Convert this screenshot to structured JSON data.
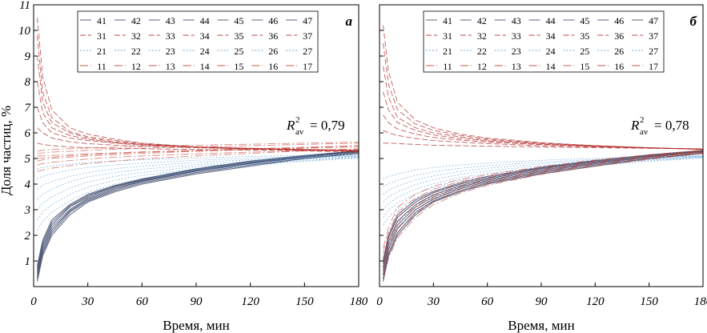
{
  "figure": {
    "ylabel": "Доля частиц, %",
    "xlabel": "Время, мин"
  },
  "chart_data": [
    {
      "panel_label": "а",
      "type": "line",
      "xlabel": "Время, мин",
      "ylabel": "Доля частиц, %",
      "xlim": [
        0,
        180
      ],
      "ylim": [
        0,
        11
      ],
      "xticks": [
        0,
        30,
        60,
        90,
        120,
        150,
        180
      ],
      "yticks": [
        1,
        2,
        3,
        4,
        5,
        6,
        7,
        8,
        9,
        10,
        11
      ],
      "grid": false,
      "legend_position": "top",
      "legend_labels": [
        [
          "41",
          "42",
          "43",
          "44",
          "45",
          "46",
          "47"
        ],
        [
          "31",
          "32",
          "33",
          "34",
          "35",
          "36",
          "37"
        ],
        [
          "21",
          "22",
          "23",
          "24",
          "25",
          "26",
          "27"
        ],
        [
          "11",
          "12",
          "13",
          "14",
          "15",
          "16",
          "17"
        ]
      ],
      "legend_colors": {
        "4": "#7a86a8",
        "3": "#d7b0b4",
        "2": "#a9c4d6",
        "1": "#c8a59e"
      },
      "annotation": {
        "symbol": "R",
        "superscript": "2",
        "subscript": "av",
        "text": "= 0,79"
      },
      "x": [
        2,
        5,
        10,
        20,
        30,
        45,
        60,
        90,
        120,
        150,
        180
      ],
      "series": [
        {
          "name": "41",
          "group": "4",
          "values": [
            0.2,
            1.2,
            2.0,
            2.8,
            3.3,
            3.7,
            4.0,
            4.4,
            4.7,
            5.0,
            5.2
          ]
        },
        {
          "name": "42",
          "group": "4",
          "values": [
            0.3,
            1.3,
            2.1,
            2.9,
            3.35,
            3.75,
            4.05,
            4.45,
            4.75,
            5.0,
            5.2
          ]
        },
        {
          "name": "43",
          "group": "4",
          "values": [
            0.4,
            1.4,
            2.2,
            2.95,
            3.4,
            3.8,
            4.1,
            4.5,
            4.8,
            5.05,
            5.25
          ]
        },
        {
          "name": "44",
          "group": "4",
          "values": [
            0.5,
            1.5,
            2.3,
            3.0,
            3.45,
            3.85,
            4.12,
            4.52,
            4.82,
            5.05,
            5.25
          ]
        },
        {
          "name": "45",
          "group": "4",
          "values": [
            0.6,
            1.6,
            2.4,
            3.1,
            3.5,
            3.9,
            4.15,
            4.55,
            4.85,
            5.08,
            5.28
          ]
        },
        {
          "name": "46",
          "group": "4",
          "values": [
            0.7,
            1.7,
            2.5,
            3.15,
            3.55,
            3.92,
            4.18,
            4.58,
            4.87,
            5.1,
            5.3
          ]
        },
        {
          "name": "47",
          "group": "4",
          "values": [
            0.8,
            1.8,
            2.6,
            3.2,
            3.6,
            3.95,
            4.2,
            4.6,
            4.9,
            5.12,
            5.3
          ]
        },
        {
          "name": "31",
          "group": "3",
          "values": [
            10.5,
            8.2,
            6.9,
            6.2,
            5.95,
            5.75,
            5.6,
            5.45,
            5.35,
            5.3,
            5.25
          ]
        },
        {
          "name": "32",
          "group": "3",
          "values": [
            9.8,
            7.6,
            6.6,
            6.05,
            5.85,
            5.7,
            5.58,
            5.45,
            5.38,
            5.33,
            5.28
          ]
        },
        {
          "name": "33",
          "group": "3",
          "values": [
            9.0,
            7.2,
            6.4,
            6.0,
            5.8,
            5.65,
            5.55,
            5.45,
            5.38,
            5.33,
            5.3
          ]
        },
        {
          "name": "34",
          "group": "3",
          "values": [
            8.0,
            6.8,
            6.2,
            5.9,
            5.75,
            5.62,
            5.55,
            5.45,
            5.4,
            5.35,
            5.3
          ]
        },
        {
          "name": "35",
          "group": "3",
          "values": [
            7.0,
            6.4,
            6.0,
            5.8,
            5.7,
            5.6,
            5.52,
            5.45,
            5.4,
            5.35,
            5.32
          ]
        },
        {
          "name": "36",
          "group": "3",
          "values": [
            6.2,
            6.0,
            5.8,
            5.65,
            5.58,
            5.52,
            5.48,
            5.42,
            5.38,
            5.35,
            5.32
          ]
        },
        {
          "name": "37",
          "group": "3",
          "values": [
            5.6,
            5.55,
            5.5,
            5.45,
            5.42,
            5.4,
            5.38,
            5.35,
            5.33,
            5.32,
            5.3
          ]
        },
        {
          "name": "21",
          "group": "2",
          "values": [
            4.6,
            4.65,
            4.7,
            4.78,
            4.84,
            4.9,
            4.95,
            5.02,
            5.08,
            5.12,
            5.15
          ]
        },
        {
          "name": "22",
          "group": "2",
          "values": [
            4.2,
            4.3,
            4.4,
            4.55,
            4.65,
            4.75,
            4.82,
            4.93,
            5.01,
            5.07,
            5.12
          ]
        },
        {
          "name": "23",
          "group": "2",
          "values": [
            3.8,
            3.95,
            4.1,
            4.3,
            4.45,
            4.6,
            4.7,
            4.85,
            4.95,
            5.03,
            5.1
          ]
        },
        {
          "name": "24",
          "group": "2",
          "values": [
            3.4,
            3.6,
            3.8,
            4.1,
            4.28,
            4.45,
            4.58,
            4.76,
            4.89,
            5.0,
            5.08
          ]
        },
        {
          "name": "25",
          "group": "2",
          "values": [
            3.0,
            3.25,
            3.5,
            3.85,
            4.08,
            4.3,
            4.46,
            4.68,
            4.84,
            4.96,
            5.06
          ]
        },
        {
          "name": "26",
          "group": "2",
          "values": [
            2.6,
            2.9,
            3.2,
            3.6,
            3.88,
            4.15,
            4.34,
            4.6,
            4.78,
            4.92,
            5.04
          ]
        },
        {
          "name": "27",
          "group": "2",
          "values": [
            2.2,
            2.55,
            2.9,
            3.35,
            3.68,
            4.0,
            4.22,
            4.52,
            4.73,
            4.89,
            5.02
          ]
        },
        {
          "name": "11",
          "group": "1",
          "values": [
            4.75,
            4.8,
            4.85,
            4.92,
            4.98,
            5.05,
            5.1,
            5.18,
            5.25,
            5.3,
            5.35
          ]
        },
        {
          "name": "12",
          "group": "1",
          "values": [
            5.0,
            5.02,
            5.05,
            5.1,
            5.15,
            5.2,
            5.24,
            5.3,
            5.35,
            5.4,
            5.45
          ]
        },
        {
          "name": "13",
          "group": "1",
          "values": [
            5.2,
            5.22,
            5.25,
            5.28,
            5.32,
            5.36,
            5.4,
            5.45,
            5.5,
            5.55,
            5.6
          ]
        },
        {
          "name": "14",
          "group": "1",
          "values": [
            5.3,
            5.32,
            5.35,
            5.38,
            5.41,
            5.44,
            5.47,
            5.52,
            5.56,
            5.6,
            5.64
          ]
        },
        {
          "name": "15",
          "group": "1",
          "values": [
            4.9,
            4.95,
            5.0,
            5.05,
            5.1,
            5.15,
            5.2,
            5.28,
            5.35,
            5.42,
            5.5
          ]
        },
        {
          "name": "16",
          "group": "1",
          "values": [
            4.5,
            4.55,
            4.62,
            4.72,
            4.8,
            4.9,
            4.98,
            5.1,
            5.2,
            5.3,
            5.38
          ]
        },
        {
          "name": "17",
          "group": "1",
          "values": [
            5.1,
            5.1,
            5.12,
            5.15,
            5.18,
            5.22,
            5.26,
            5.32,
            5.38,
            5.44,
            5.5
          ]
        }
      ]
    },
    {
      "panel_label": "б",
      "type": "line",
      "xlabel": "Время, мин",
      "xlim": [
        0,
        180
      ],
      "ylim": [
        0,
        11
      ],
      "xticks": [
        0,
        30,
        60,
        90,
        120,
        150,
        180
      ],
      "yticks": [
        1,
        2,
        3,
        4,
        5,
        6,
        7,
        8,
        9,
        10,
        11
      ],
      "grid": false,
      "legend_position": "top",
      "legend_labels": [
        [
          "41",
          "42",
          "43",
          "44",
          "45",
          "46",
          "47"
        ],
        [
          "31",
          "32",
          "33",
          "34",
          "35",
          "36",
          "37"
        ],
        [
          "21",
          "22",
          "23",
          "24",
          "25",
          "26",
          "27"
        ],
        [
          "11",
          "12",
          "13",
          "14",
          "15",
          "16",
          "17"
        ]
      ],
      "legend_colors": {
        "4": "#7a86a8",
        "3": "#d7b0b4",
        "2": "#a9c4d6",
        "1": "#4b5d79"
      },
      "annotation": {
        "symbol": "R",
        "superscript": "2",
        "subscript": "av",
        "text": "= 0,78"
      },
      "x": [
        2,
        5,
        10,
        20,
        30,
        45,
        60,
        90,
        120,
        150,
        180
      ],
      "series": [
        {
          "name": "41",
          "group": "4",
          "values": [
            0.2,
            1.2,
            2.0,
            2.8,
            3.3,
            3.7,
            4.0,
            4.4,
            4.7,
            5.0,
            5.2
          ]
        },
        {
          "name": "42",
          "group": "4",
          "values": [
            0.3,
            1.3,
            2.1,
            2.9,
            3.35,
            3.75,
            4.05,
            4.45,
            4.75,
            5.0,
            5.2
          ]
        },
        {
          "name": "43",
          "group": "4",
          "values": [
            0.45,
            1.45,
            2.25,
            3.0,
            3.42,
            3.82,
            4.1,
            4.5,
            4.8,
            5.05,
            5.25
          ]
        },
        {
          "name": "44",
          "group": "4",
          "values": [
            0.6,
            1.6,
            2.4,
            3.1,
            3.5,
            3.88,
            4.15,
            4.55,
            4.83,
            5.07,
            5.27
          ]
        },
        {
          "name": "45",
          "group": "4",
          "values": [
            0.75,
            1.75,
            2.55,
            3.2,
            3.58,
            3.94,
            4.2,
            4.6,
            4.87,
            5.1,
            5.3
          ]
        },
        {
          "name": "46",
          "group": "4",
          "values": [
            0.9,
            1.9,
            2.7,
            3.3,
            3.66,
            4.0,
            4.25,
            4.63,
            4.9,
            5.12,
            5.3
          ]
        },
        {
          "name": "47",
          "group": "4",
          "values": [
            1.0,
            2.0,
            2.8,
            3.38,
            3.72,
            4.05,
            4.3,
            4.66,
            4.92,
            5.14,
            5.32
          ]
        },
        {
          "name": "31",
          "group": "3",
          "values": [
            10.2,
            8.4,
            7.2,
            6.5,
            6.2,
            5.95,
            5.8,
            5.62,
            5.5,
            5.42,
            5.35
          ]
        },
        {
          "name": "32",
          "group": "3",
          "values": [
            9.5,
            7.9,
            6.9,
            6.35,
            6.1,
            5.9,
            5.76,
            5.6,
            5.5,
            5.42,
            5.36
          ]
        },
        {
          "name": "33",
          "group": "3",
          "values": [
            8.6,
            7.4,
            6.6,
            6.2,
            6.0,
            5.84,
            5.72,
            5.58,
            5.48,
            5.42,
            5.36
          ]
        },
        {
          "name": "34",
          "group": "3",
          "values": [
            7.6,
            6.9,
            6.4,
            6.1,
            5.92,
            5.78,
            5.68,
            5.56,
            5.48,
            5.42,
            5.36
          ]
        },
        {
          "name": "35",
          "group": "3",
          "values": [
            6.7,
            6.4,
            6.15,
            5.95,
            5.82,
            5.72,
            5.64,
            5.54,
            5.47,
            5.42,
            5.37
          ]
        },
        {
          "name": "36",
          "group": "3",
          "values": [
            6.1,
            6.0,
            5.9,
            5.78,
            5.7,
            5.64,
            5.58,
            5.5,
            5.45,
            5.4,
            5.37
          ]
        },
        {
          "name": "37",
          "group": "3",
          "values": [
            5.6,
            5.6,
            5.58,
            5.55,
            5.52,
            5.5,
            5.48,
            5.45,
            5.42,
            5.4,
            5.38
          ]
        },
        {
          "name": "21",
          "group": "2",
          "values": [
            4.2,
            4.3,
            4.4,
            4.55,
            4.65,
            4.75,
            4.82,
            4.93,
            5.01,
            5.07,
            5.12
          ]
        },
        {
          "name": "22",
          "group": "2",
          "values": [
            3.9,
            4.02,
            4.15,
            4.34,
            4.48,
            4.62,
            4.72,
            4.86,
            4.96,
            5.04,
            5.1
          ]
        },
        {
          "name": "23",
          "group": "2",
          "values": [
            3.6,
            3.76,
            3.92,
            4.16,
            4.32,
            4.5,
            4.62,
            4.79,
            4.92,
            5.01,
            5.09
          ]
        },
        {
          "name": "24",
          "group": "2",
          "values": [
            3.3,
            3.5,
            3.7,
            3.98,
            4.17,
            4.38,
            4.52,
            4.72,
            4.87,
            4.98,
            5.07
          ]
        },
        {
          "name": "25",
          "group": "2",
          "values": [
            3.0,
            3.24,
            3.48,
            3.8,
            4.02,
            4.26,
            4.42,
            4.65,
            4.82,
            4.95,
            5.06
          ]
        },
        {
          "name": "26",
          "group": "2",
          "values": [
            2.7,
            2.98,
            3.26,
            3.62,
            3.87,
            4.14,
            4.32,
            4.58,
            4.77,
            4.92,
            5.04
          ]
        },
        {
          "name": "27",
          "group": "2",
          "values": [
            2.4,
            2.72,
            3.04,
            3.44,
            3.72,
            4.02,
            4.22,
            4.51,
            4.72,
            4.89,
            5.02
          ]
        },
        {
          "name": "11",
          "group": "1",
          "values": [
            0.3,
            1.1,
            1.9,
            2.7,
            3.2,
            3.65,
            3.95,
            4.38,
            4.7,
            4.97,
            5.2
          ]
        },
        {
          "name": "12",
          "group": "1",
          "values": [
            0.5,
            1.3,
            2.1,
            2.85,
            3.32,
            3.74,
            4.02,
            4.43,
            4.74,
            5.0,
            5.22
          ]
        },
        {
          "name": "13",
          "group": "1",
          "values": [
            0.7,
            1.5,
            2.3,
            3.0,
            3.44,
            3.83,
            4.09,
            4.48,
            4.78,
            5.03,
            5.24
          ]
        },
        {
          "name": "14",
          "group": "1",
          "values": [
            0.9,
            1.7,
            2.5,
            3.15,
            3.56,
            3.92,
            4.16,
            4.53,
            4.82,
            5.06,
            5.26
          ]
        },
        {
          "name": "15",
          "group": "1",
          "values": [
            1.1,
            1.9,
            2.7,
            3.3,
            3.68,
            4.01,
            4.23,
            4.58,
            4.86,
            5.09,
            5.28
          ]
        },
        {
          "name": "16",
          "group": "1",
          "values": [
            1.3,
            2.1,
            2.9,
            3.45,
            3.8,
            4.1,
            4.3,
            4.63,
            4.9,
            5.12,
            5.3
          ]
        },
        {
          "name": "17",
          "group": "1",
          "values": [
            1.5,
            2.3,
            3.1,
            3.6,
            3.92,
            4.19,
            4.37,
            4.68,
            4.94,
            5.15,
            5.32
          ]
        }
      ]
    }
  ]
}
